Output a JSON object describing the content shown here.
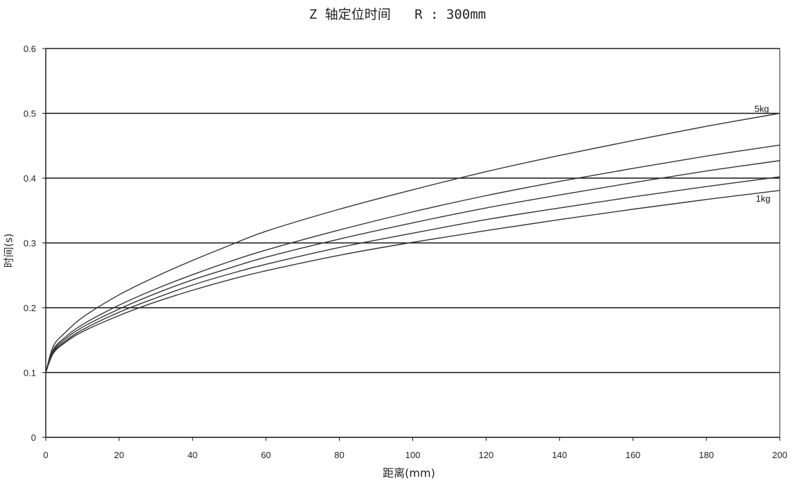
{
  "chart_data": {
    "type": "line",
    "title": "Z 轴定位时间   R : 300mm",
    "xlabel": "距离(mm)",
    "ylabel": "时间(s)",
    "xlim": [
      0,
      200
    ],
    "ylim": [
      0,
      0.6
    ],
    "x_ticks": [
      "0",
      "20",
      "40",
      "60",
      "80",
      "100",
      "120",
      "140",
      "160",
      "180",
      "200"
    ],
    "y_ticks": [
      "0",
      "0.1",
      "0.2",
      "0.3",
      "0.4",
      "0.5",
      "0.6"
    ],
    "grid": "horizontal",
    "x": [
      0,
      2,
      5,
      10,
      20,
      30,
      40,
      50,
      60,
      80,
      100,
      120,
      140,
      160,
      180,
      200
    ],
    "series": [
      {
        "name": "5kg",
        "values": [
          0.1,
          0.14,
          0.16,
          0.185,
          0.22,
          0.248,
          0.273,
          0.296,
          0.318,
          0.352,
          0.382,
          0.41,
          0.435,
          0.458,
          0.48,
          0.5
        ]
      },
      {
        "name": "",
        "values": [
          0.1,
          0.135,
          0.153,
          0.174,
          0.204,
          0.229,
          0.251,
          0.271,
          0.289,
          0.32,
          0.348,
          0.373,
          0.395,
          0.415,
          0.434,
          0.451
        ]
      },
      {
        "name": "",
        "values": [
          0.1,
          0.133,
          0.15,
          0.17,
          0.198,
          0.222,
          0.243,
          0.261,
          0.278,
          0.306,
          0.331,
          0.354,
          0.374,
          0.393,
          0.411,
          0.427
        ]
      },
      {
        "name": "",
        "values": [
          0.1,
          0.131,
          0.147,
          0.166,
          0.193,
          0.215,
          0.235,
          0.252,
          0.267,
          0.293,
          0.315,
          0.336,
          0.354,
          0.371,
          0.387,
          0.402
        ]
      },
      {
        "name": "1kg",
        "values": [
          0.1,
          0.129,
          0.145,
          0.163,
          0.188,
          0.209,
          0.227,
          0.243,
          0.257,
          0.281,
          0.301,
          0.319,
          0.336,
          0.352,
          0.367,
          0.381
        ]
      }
    ]
  }
}
